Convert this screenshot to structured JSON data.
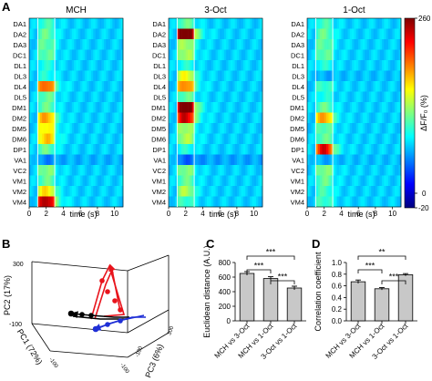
{
  "panel_letters": {
    "a": "A",
    "b": "B",
    "c": "C",
    "d": "D"
  },
  "heatmaps": {
    "rows": [
      "DA1",
      "DA2",
      "DA3",
      "DC1",
      "DL1",
      "DL3",
      "DL4",
      "DL5",
      "DM1",
      "DM2",
      "DM5",
      "DM6",
      "DP1",
      "VA1",
      "VC2",
      "VM1",
      "VM2",
      "VM4"
    ],
    "time_ticks": [
      0,
      2,
      4,
      6,
      8,
      10
    ],
    "xlabel": "time (s)",
    "stim_window_s": [
      1,
      3
    ],
    "panels": [
      {
        "title": "MCH"
      },
      {
        "title": "3-Oct"
      },
      {
        "title": "1-Oct"
      }
    ],
    "colorbar": {
      "ticks": [
        "260",
        "0",
        "-20"
      ],
      "label": "ΔF/F₀ (%)",
      "colors": [
        "#00007f",
        "#0000ff",
        "#007fff",
        "#00ffff",
        "#7fff7f",
        "#ffff00",
        "#ff7f00",
        "#ff0000",
        "#7f0000"
      ]
    }
  },
  "chart_data": [
    {
      "type": "heatmap",
      "title": "MCH",
      "xlabel": "time (s)",
      "x_range_s": [
        0,
        11
      ],
      "rows": [
        "DA1",
        "DA2",
        "DA3",
        "DC1",
        "DL1",
        "DL3",
        "DL4",
        "DL5",
        "DM1",
        "DM2",
        "DM5",
        "DM6",
        "DP1",
        "VA1",
        "VC2",
        "VM1",
        "VM2",
        "VM4"
      ],
      "peak_response_pct": [
        30,
        40,
        40,
        40,
        20,
        20,
        130,
        40,
        40,
        110,
        90,
        100,
        40,
        -20,
        50,
        40,
        90,
        180
      ]
    },
    {
      "type": "heatmap",
      "title": "3-Oct",
      "xlabel": "time (s)",
      "x_range_s": [
        0,
        11
      ],
      "rows": [
        "DA1",
        "DA2",
        "DA3",
        "DC1",
        "DL1",
        "DL3",
        "DL4",
        "DL5",
        "DM1",
        "DM2",
        "DM5",
        "DM6",
        "DP1",
        "VA1",
        "VC2",
        "VM1",
        "VM2",
        "VM4"
      ],
      "peak_response_pct": [
        40,
        230,
        60,
        60,
        20,
        80,
        120,
        40,
        220,
        170,
        60,
        60,
        20,
        -30,
        50,
        40,
        60,
        30
      ]
    },
    {
      "type": "heatmap",
      "title": "1-Oct",
      "xlabel": "time (s)",
      "x_range_s": [
        0,
        11
      ],
      "rows": [
        "DA1",
        "DA2",
        "DA3",
        "DC1",
        "DL1",
        "DL3",
        "DL4",
        "DL5",
        "DM1",
        "DM2",
        "DM5",
        "DM6",
        "DP1",
        "VA1",
        "VC2",
        "VM1",
        "VM2",
        "VM4"
      ],
      "peak_response_pct": [
        30,
        40,
        40,
        40,
        20,
        -10,
        30,
        20,
        40,
        110,
        40,
        40,
        160,
        -10,
        50,
        40,
        30,
        30
      ]
    },
    {
      "type": "scatter",
      "subtype": "3d-trajectory",
      "axis_labels": {
        "pc1": "PC1 (72%)",
        "pc2": "PC2 (17%)",
        "pc3": "PC3 (6%)"
      },
      "tick_labels": [
        "300",
        "-100",
        "-100",
        "-100",
        "-100",
        "300"
      ],
      "series": [
        {
          "color": "#e8141c"
        },
        {
          "color": "#000000"
        },
        {
          "color": "#1f2fd6"
        }
      ]
    },
    {
      "type": "bar",
      "categories": [
        "MCH vs 3-Oct",
        "MCH vs 1-Oct",
        "3-Oct vs 1-Oct"
      ],
      "values": [
        650,
        580,
        450
      ],
      "errors": [
        25,
        25,
        25
      ],
      "ylabel": "Euclidean distance (A.U.)",
      "ylim": [
        0,
        800
      ],
      "yticks": [
        0,
        200,
        400,
        600,
        800
      ],
      "significance": [
        {
          "pair": [
            0,
            2
          ],
          "label": "***"
        },
        {
          "pair": [
            0,
            1
          ],
          "label": "***"
        },
        {
          "pair": [
            1,
            2
          ],
          "label": "***"
        }
      ],
      "color": "#c8c8c8"
    },
    {
      "type": "bar",
      "categories": [
        "MCH vs 3-Oct",
        "MCH vs 1-Oct",
        "3-Oct vs 1-Oct"
      ],
      "values": [
        0.67,
        0.55,
        0.79
      ],
      "errors": [
        0.03,
        0.02,
        0.02
      ],
      "ylabel": "Correlation coefficient",
      "ylim": [
        0,
        1.0
      ],
      "yticks": [
        0,
        0.2,
        0.4,
        0.6,
        0.8,
        1.0
      ],
      "significance": [
        {
          "pair": [
            0,
            2
          ],
          "label": "**"
        },
        {
          "pair": [
            0,
            1
          ],
          "label": "***"
        },
        {
          "pair": [
            1,
            2
          ],
          "label": "***"
        }
      ],
      "color": "#c8c8c8"
    }
  ]
}
